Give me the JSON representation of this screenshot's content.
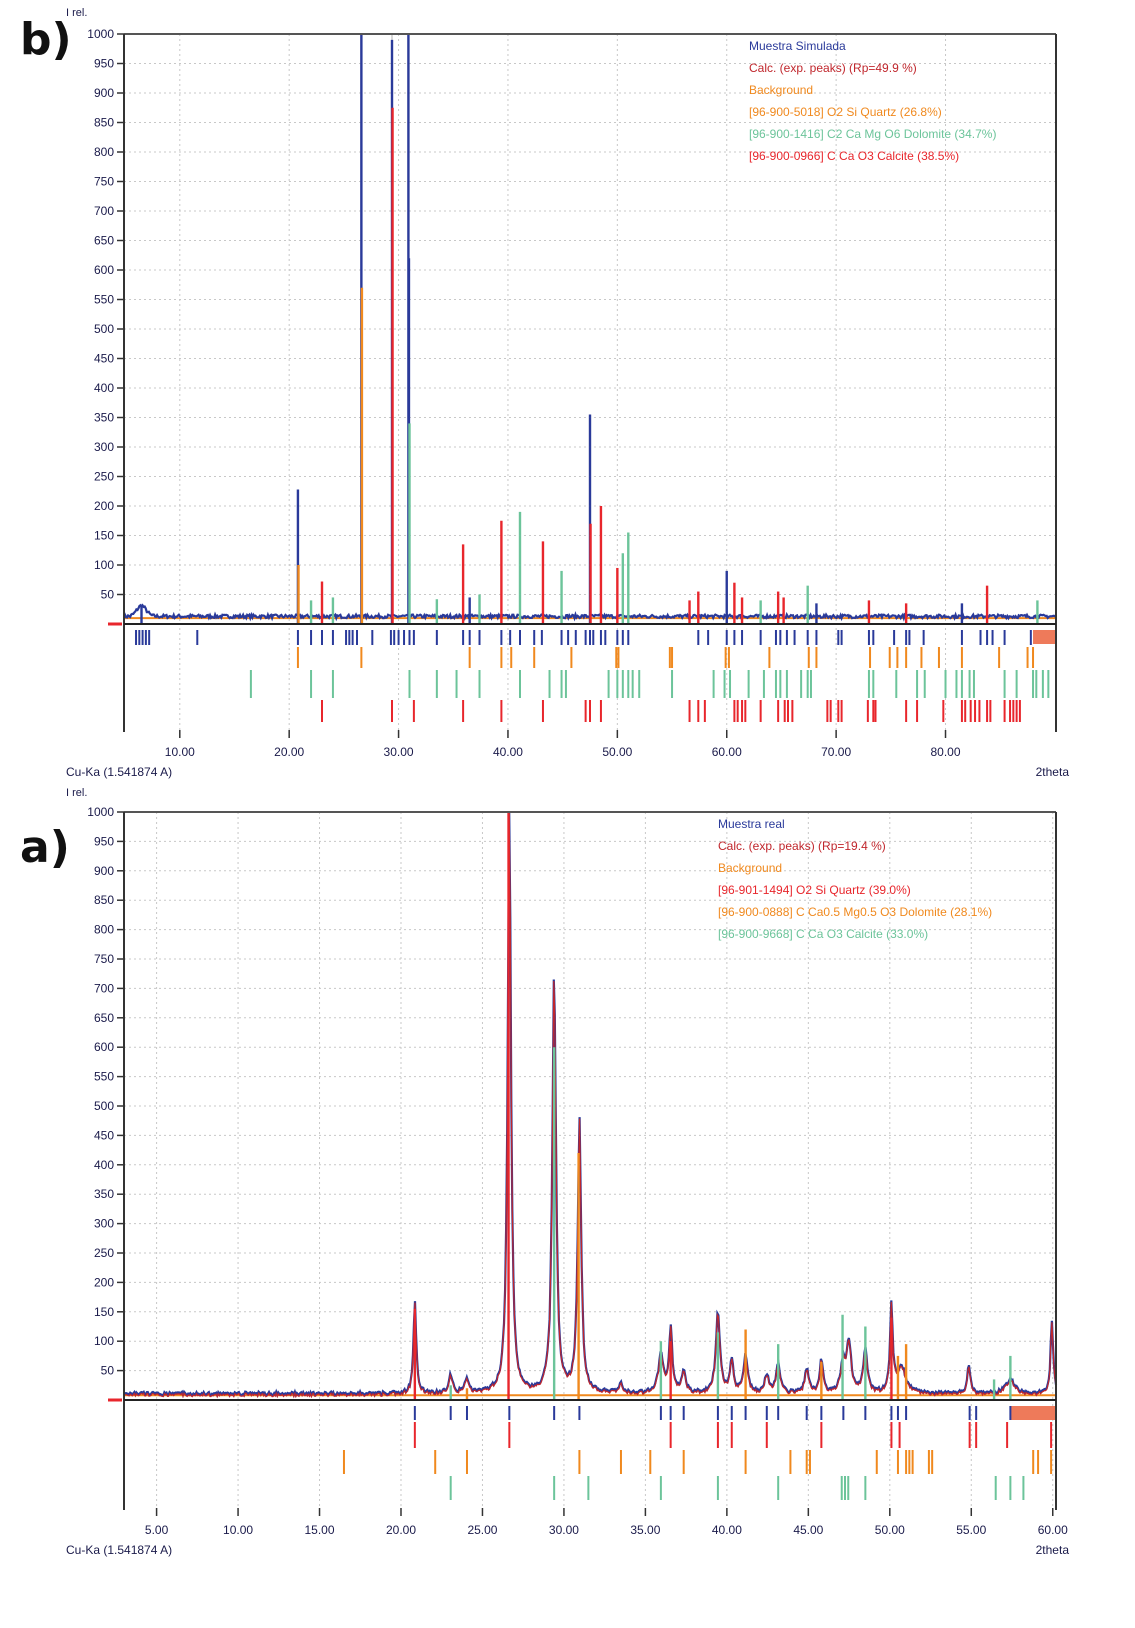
{
  "colors": {
    "sample": "#2a3a9a",
    "calc": "#c0262c",
    "background": "#f0891e",
    "red_phase": "#e8262c",
    "orange_phase": "#f0891e",
    "green_phase": "#6cc49a",
    "axis": "#333333",
    "grid": "#c8c8c8",
    "excluded": "#ee7a5a"
  },
  "chart_data": [
    {
      "id": "b",
      "panel_label": "b)",
      "type": "line",
      "ylabel": "I rel.",
      "xlabel": "2theta",
      "wavelength_label": "Cu-Ka (1.541874 A)",
      "xlim": [
        4.9,
        90.1
      ],
      "ylim": [
        0,
        1000
      ],
      "xticks": [
        10,
        20,
        30,
        40,
        50,
        60,
        70,
        80
      ],
      "xtick_labels": [
        "10.00",
        "20.00",
        "30.00",
        "40.00",
        "50.00",
        "60.00",
        "70.00",
        "80.00"
      ],
      "yticks": [
        50,
        100,
        150,
        200,
        250,
        300,
        350,
        400,
        450,
        500,
        550,
        600,
        650,
        700,
        750,
        800,
        850,
        900,
        950,
        1000
      ],
      "ytick_labels": [
        "50",
        "100",
        "150",
        "200",
        "250",
        "300",
        "350",
        "400",
        "450",
        "500",
        "550",
        "600",
        "650",
        "700",
        "750",
        "800",
        "850",
        "900",
        "950",
        "1000"
      ],
      "grid": true,
      "legend_position": "top-right",
      "legend": [
        {
          "label": "Muestra Simulada",
          "color": "#2a3a9a"
        },
        {
          "label": "Calc. (exp. peaks) (Rp=49.9 %)",
          "color": "#c0262c"
        },
        {
          "label": "Background",
          "color": "#f0891e"
        },
        {
          "label": "[96-900-5018] O2 Si Quartz (26.8%)",
          "color": "#f0891e"
        },
        {
          "label": "[96-900-1416] C2 Ca Mg O6 Dolomite (34.7%)",
          "color": "#6cc49a"
        },
        {
          "label": "[96-900-0966] C Ca O3 Calcite (38.5%)",
          "color": "#e8262c"
        }
      ],
      "background_level": 10,
      "peaks": [
        {
          "x": 6.5,
          "y": 30,
          "color": "sample"
        },
        {
          "x": 20.8,
          "y": 228,
          "color": "sample"
        },
        {
          "x": 20.85,
          "y": 100,
          "color": "orange_phase"
        },
        {
          "x": 22.0,
          "y": 40,
          "color": "green_phase"
        },
        {
          "x": 23.0,
          "y": 72,
          "color": "red_phase"
        },
        {
          "x": 24.0,
          "y": 45,
          "color": "green_phase"
        },
        {
          "x": 26.6,
          "y": 1000,
          "color": "sample"
        },
        {
          "x": 26.65,
          "y": 570,
          "color": "orange_phase"
        },
        {
          "x": 29.4,
          "y": 990,
          "color": "sample"
        },
        {
          "x": 29.45,
          "y": 875,
          "color": "red_phase"
        },
        {
          "x": 30.9,
          "y": 1000,
          "color": "sample"
        },
        {
          "x": 30.95,
          "y": 620,
          "color": "sample"
        },
        {
          "x": 31.0,
          "y": 340,
          "color": "green_phase"
        },
        {
          "x": 33.5,
          "y": 42,
          "color": "green_phase"
        },
        {
          "x": 35.9,
          "y": 135,
          "color": "red_phase"
        },
        {
          "x": 36.5,
          "y": 45,
          "color": "sample"
        },
        {
          "x": 37.4,
          "y": 50,
          "color": "green_phase"
        },
        {
          "x": 39.4,
          "y": 175,
          "color": "red_phase"
        },
        {
          "x": 41.1,
          "y": 190,
          "color": "green_phase"
        },
        {
          "x": 43.2,
          "y": 140,
          "color": "red_phase"
        },
        {
          "x": 44.9,
          "y": 90,
          "color": "green_phase"
        },
        {
          "x": 47.5,
          "y": 355,
          "color": "sample"
        },
        {
          "x": 47.55,
          "y": 170,
          "color": "red_phase"
        },
        {
          "x": 48.5,
          "y": 200,
          "color": "red_phase"
        },
        {
          "x": 50.0,
          "y": 95,
          "color": "red_phase"
        },
        {
          "x": 50.5,
          "y": 120,
          "color": "green_phase"
        },
        {
          "x": 51.0,
          "y": 155,
          "color": "green_phase"
        },
        {
          "x": 56.6,
          "y": 40,
          "color": "red_phase"
        },
        {
          "x": 57.4,
          "y": 55,
          "color": "red_phase"
        },
        {
          "x": 60.0,
          "y": 90,
          "color": "sample"
        },
        {
          "x": 60.7,
          "y": 70,
          "color": "red_phase"
        },
        {
          "x": 61.4,
          "y": 45,
          "color": "red_phase"
        },
        {
          "x": 63.1,
          "y": 40,
          "color": "green_phase"
        },
        {
          "x": 64.7,
          "y": 55,
          "color": "red_phase"
        },
        {
          "x": 65.2,
          "y": 45,
          "color": "red_phase"
        },
        {
          "x": 67.4,
          "y": 65,
          "color": "green_phase"
        },
        {
          "x": 68.2,
          "y": 35,
          "color": "sample"
        },
        {
          "x": 73.0,
          "y": 40,
          "color": "red_phase"
        },
        {
          "x": 76.4,
          "y": 35,
          "color": "red_phase"
        },
        {
          "x": 81.5,
          "y": 35,
          "color": "sample"
        },
        {
          "x": 83.8,
          "y": 65,
          "color": "red_phase"
        },
        {
          "x": 88.4,
          "y": 40,
          "color": "green_phase"
        }
      ],
      "reflections": {
        "sample": [
          6.0,
          6.3,
          6.6,
          6.9,
          7.2,
          11.6,
          20.8,
          22.0,
          23.0,
          24.0,
          25.2,
          25.5,
          25.8,
          26.2,
          27.6,
          29.3,
          29.6,
          30.0,
          30.5,
          31.0,
          31.4,
          33.5,
          35.9,
          36.5,
          37.4,
          39.4,
          40.2,
          41.1,
          42.4,
          43.1,
          44.9,
          45.5,
          46.2,
          47.1,
          47.5,
          47.8,
          48.5,
          48.9,
          50.0,
          50.5,
          51.0,
          57.4,
          58.3,
          60.0,
          60.7,
          61.4,
          63.1,
          64.5,
          64.9,
          65.5,
          66.2,
          67.4,
          68.2,
          70.2,
          70.5,
          73.0,
          73.4,
          75.3,
          76.4,
          76.7,
          78.0,
          81.5,
          83.2,
          83.8,
          84.3,
          85.4,
          87.8
        ],
        "orange_phase": [
          20.8,
          26.6,
          36.5,
          39.4,
          40.3,
          42.4,
          45.8,
          49.9,
          50.1,
          54.8,
          55.0,
          59.9,
          60.2,
          63.9,
          67.5,
          68.2,
          73.1,
          74.9,
          75.6,
          76.4,
          77.8,
          79.4,
          81.5,
          84.9,
          87.5,
          88.0
        ],
        "green_phase": [
          16.5,
          22.0,
          24.0,
          31.0,
          33.5,
          35.3,
          37.4,
          41.1,
          43.8,
          44.9,
          45.3,
          49.2,
          50.0,
          50.5,
          51.0,
          51.4,
          52.0,
          55.0,
          58.8,
          59.8,
          60.3,
          62.0,
          63.4,
          64.5,
          64.9,
          65.5,
          66.8,
          67.4,
          67.7,
          73.0,
          73.4,
          75.5,
          77.4,
          78.1,
          80.0,
          81.0,
          81.5,
          82.2,
          82.6,
          85.4,
          86.5,
          88.0,
          88.3,
          88.9,
          89.4
        ],
        "red_phase": [
          23.0,
          29.4,
          31.4,
          35.9,
          39.4,
          43.2,
          47.1,
          47.5,
          48.5,
          56.6,
          57.4,
          58.0,
          60.7,
          61.0,
          61.4,
          61.7,
          63.1,
          64.7,
          65.3,
          65.6,
          66.0,
          69.2,
          69.5,
          70.2,
          70.5,
          72.9,
          73.4,
          73.6,
          76.4,
          77.4,
          79.8,
          81.5,
          81.8,
          82.3,
          82.7,
          83.1,
          83.8,
          84.1,
          85.4,
          85.9,
          86.2,
          86.5,
          86.8
        ]
      },
      "excluded_region": [
        88.0,
        90.1
      ]
    },
    {
      "id": "a",
      "panel_label": "a)",
      "type": "line",
      "ylabel": "I rel.",
      "xlabel": "2theta",
      "wavelength_label": "Cu-Ka (1.541874 A)",
      "xlim": [
        3.0,
        60.2
      ],
      "ylim": [
        0,
        1000
      ],
      "xticks": [
        5,
        10,
        15,
        20,
        25,
        30,
        35,
        40,
        45,
        50,
        55,
        60
      ],
      "xtick_labels": [
        "5.00",
        "10.00",
        "15.00",
        "20.00",
        "25.00",
        "30.00",
        "35.00",
        "40.00",
        "45.00",
        "50.00",
        "55.00",
        "60.00"
      ],
      "yticks": [
        50,
        100,
        150,
        200,
        250,
        300,
        350,
        400,
        450,
        500,
        550,
        600,
        650,
        700,
        750,
        800,
        850,
        900,
        950,
        1000
      ],
      "ytick_labels": [
        "50",
        "100",
        "150",
        "200",
        "250",
        "300",
        "350",
        "400",
        "450",
        "500",
        "550",
        "600",
        "650",
        "700",
        "750",
        "800",
        "850",
        "900",
        "950",
        "1000"
      ],
      "grid": true,
      "legend_position": "top-right",
      "legend": [
        {
          "label": "Muestra real",
          "color": "#2a3a9a"
        },
        {
          "label": "Calc. (exp. peaks) (Rp=19.4 %)",
          "color": "#c0262c"
        },
        {
          "label": "Background",
          "color": "#f0891e"
        },
        {
          "label": "[96-901-1494] O2 Si Quartz (39.0%)",
          "color": "#e8262c"
        },
        {
          "label": "[96-900-0888] C Ca0.5 Mg0.5 O3 Dolomite (28.1%)",
          "color": "#f0891e"
        },
        {
          "label": "[96-900-9668] C Ca O3 Calcite (33.0%)",
          "color": "#6cc49a"
        }
      ],
      "background_level": 8,
      "profile_peaks": [
        {
          "x": 20.85,
          "y": 160,
          "w": 0.1
        },
        {
          "x": 23.05,
          "y": 30,
          "w": 0.15
        },
        {
          "x": 24.05,
          "y": 25,
          "w": 0.15
        },
        {
          "x": 26.65,
          "y": 1000,
          "w": 0.12
        },
        {
          "x": 29.4,
          "y": 715,
          "w": 0.13
        },
        {
          "x": 30.95,
          "y": 460,
          "w": 0.13
        },
        {
          "x": 33.5,
          "y": 15,
          "w": 0.15
        },
        {
          "x": 35.95,
          "y": 65,
          "w": 0.18
        },
        {
          "x": 36.55,
          "y": 105,
          "w": 0.12
        },
        {
          "x": 37.35,
          "y": 35,
          "w": 0.15
        },
        {
          "x": 39.45,
          "y": 135,
          "w": 0.15
        },
        {
          "x": 40.3,
          "y": 60,
          "w": 0.12
        },
        {
          "x": 41.15,
          "y": 65,
          "w": 0.15
        },
        {
          "x": 42.45,
          "y": 30,
          "w": 0.15
        },
        {
          "x": 43.15,
          "y": 50,
          "w": 0.15
        },
        {
          "x": 44.9,
          "y": 40,
          "w": 0.15
        },
        {
          "x": 45.8,
          "y": 55,
          "w": 0.12
        },
        {
          "x": 47.15,
          "y": 50,
          "w": 0.2
        },
        {
          "x": 47.5,
          "y": 80,
          "w": 0.15
        },
        {
          "x": 48.5,
          "y": 70,
          "w": 0.15
        },
        {
          "x": 50.1,
          "y": 145,
          "w": 0.1
        },
        {
          "x": 50.7,
          "y": 45,
          "w": 0.3
        },
        {
          "x": 54.85,
          "y": 45,
          "w": 0.12
        },
        {
          "x": 57.4,
          "y": 25,
          "w": 0.3
        },
        {
          "x": 59.95,
          "y": 120,
          "w": 0.1
        }
      ],
      "peaks": [
        {
          "x": 20.85,
          "y": 155,
          "color": "red_phase"
        },
        {
          "x": 23.05,
          "y": 25,
          "color": "green_phase"
        },
        {
          "x": 24.05,
          "y": 20,
          "color": "orange_phase"
        },
        {
          "x": 26.6,
          "y": 1000,
          "color": "red_phase"
        },
        {
          "x": 29.4,
          "y": 600,
          "color": "green_phase"
        },
        {
          "x": 30.9,
          "y": 420,
          "color": "orange_phase"
        },
        {
          "x": 35.95,
          "y": 100,
          "color": "green_phase"
        },
        {
          "x": 36.55,
          "y": 100,
          "color": "red_phase"
        },
        {
          "x": 39.45,
          "y": 115,
          "color": "green_phase"
        },
        {
          "x": 41.15,
          "y": 120,
          "color": "orange_phase"
        },
        {
          "x": 43.15,
          "y": 95,
          "color": "green_phase"
        },
        {
          "x": 45.8,
          "y": 65,
          "color": "orange_phase"
        },
        {
          "x": 47.1,
          "y": 145,
          "color": "green_phase"
        },
        {
          "x": 48.5,
          "y": 125,
          "color": "green_phase"
        },
        {
          "x": 50.1,
          "y": 140,
          "color": "red_phase"
        },
        {
          "x": 50.5,
          "y": 75,
          "color": "orange_phase"
        },
        {
          "x": 51.0,
          "y": 95,
          "color": "orange_phase"
        },
        {
          "x": 56.4,
          "y": 35,
          "color": "green_phase"
        },
        {
          "x": 57.4,
          "y": 75,
          "color": "green_phase"
        }
      ],
      "reflections": {
        "sample": [
          20.85,
          23.05,
          24.05,
          26.65,
          29.4,
          30.95,
          35.95,
          36.55,
          37.35,
          39.45,
          40.3,
          41.15,
          42.45,
          43.15,
          44.9,
          45.8,
          47.15,
          48.5,
          50.1,
          50.5,
          51.0,
          54.9,
          55.3,
          57.4
        ],
        "red_phase": [
          20.85,
          26.65,
          36.55,
          39.45,
          40.3,
          42.45,
          45.8,
          50.1,
          50.6,
          54.9,
          55.3,
          57.2,
          59.9
        ],
        "orange_phase": [
          16.5,
          22.1,
          24.05,
          30.95,
          33.5,
          35.3,
          37.35,
          41.15,
          43.9,
          44.9,
          45.1,
          49.2,
          50.5,
          51.0,
          51.2,
          51.4,
          52.4,
          52.6,
          58.8,
          59.1,
          59.9
        ],
        "green_phase": [
          23.05,
          29.4,
          31.5,
          35.95,
          39.45,
          43.15,
          47.05,
          47.25,
          47.45,
          48.5,
          56.5,
          57.4,
          58.2
        ]
      },
      "excluded_region": [
        57.4,
        60.2
      ]
    }
  ]
}
